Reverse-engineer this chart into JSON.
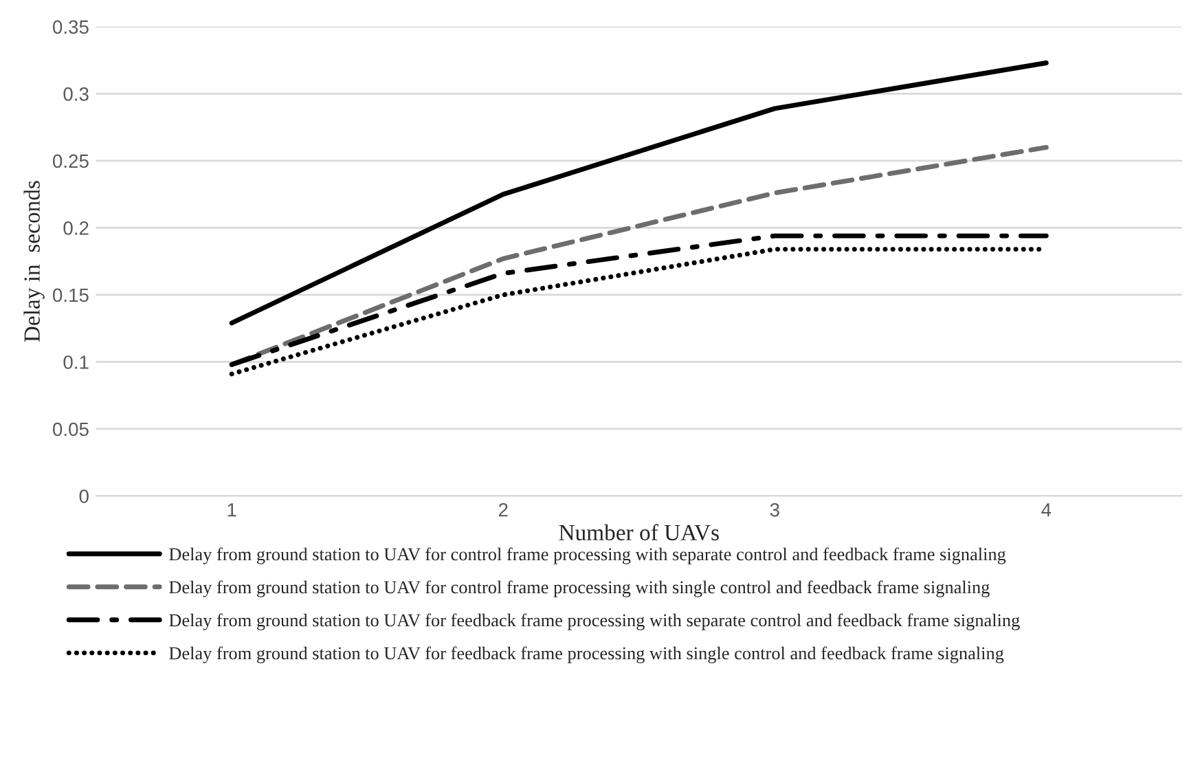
{
  "chart_data": {
    "type": "line",
    "xlabel": "Number of UAVs",
    "ylabel": "Delay in  seconds",
    "categories": [
      "1",
      "2",
      "3",
      "4"
    ],
    "series": [
      {
        "name": "Delay from ground station to UAV for control frame processing with separate control and feedback frame signaling",
        "color": "#000000",
        "line_style": "solid",
        "values": [
          0.129,
          0.225,
          0.289,
          0.323
        ]
      },
      {
        "name": "Delay from ground station to UAV for control frame processing with single control and feedback frame signaling",
        "color": "#6d6d6d",
        "line_style": "dashed",
        "values": [
          0.098,
          0.177,
          0.226,
          0.26
        ]
      },
      {
        "name": "Delay from ground station to UAV for feedback frame processing with separate control and feedback frame signaling",
        "color": "#000000",
        "line_style": "dashdot",
        "values": [
          0.098,
          0.166,
          0.194,
          0.194
        ]
      },
      {
        "name": "Delay from ground station to UAV for feedback frame processing with single control and feedback frame signaling",
        "color": "#000000",
        "line_style": "dotted",
        "values": [
          0.091,
          0.15,
          0.184,
          0.184
        ]
      }
    ],
    "ylim": [
      0,
      0.35
    ],
    "yticks": [
      0,
      0.05,
      0.1,
      0.15,
      0.2,
      0.25,
      0.3,
      0.35
    ],
    "grid": "y",
    "legend": "bottom"
  }
}
